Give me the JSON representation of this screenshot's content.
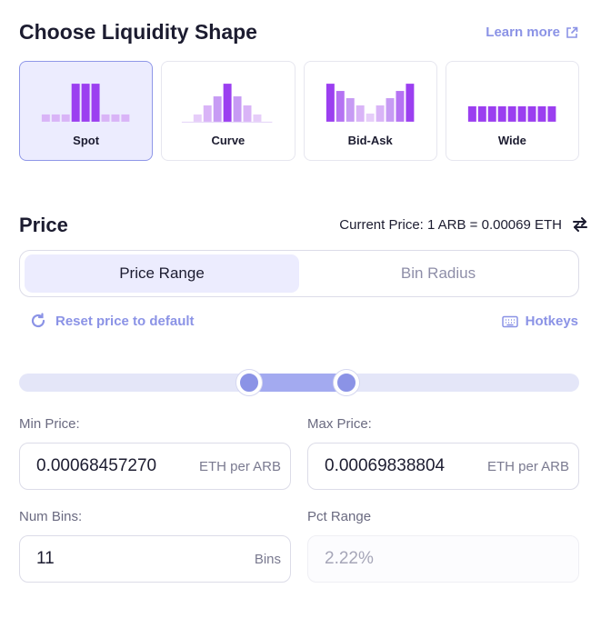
{
  "header": {
    "title": "Choose Liquidity Shape",
    "learn_more": "Learn more"
  },
  "shapes": [
    {
      "label": "Spot",
      "selected": true
    },
    {
      "label": "Curve",
      "selected": false
    },
    {
      "label": "Bid-Ask",
      "selected": false
    },
    {
      "label": "Wide",
      "selected": false
    }
  ],
  "price": {
    "title": "Price",
    "current_price": "Current Price: 1 ARB = 0.00069 ETH"
  },
  "tabs": {
    "price_range": "Price Range",
    "bin_radius": "Bin Radius",
    "active": "Price Range"
  },
  "actions": {
    "reset": "Reset price to default",
    "hotkeys": "Hotkeys"
  },
  "slider": {
    "low_fraction": 0.41,
    "high_fraction": 0.585
  },
  "fields": {
    "min_price": {
      "label": "Min Price:",
      "value": "0.00068457270",
      "unit": "ETH per ARB"
    },
    "max_price": {
      "label": "Max Price:",
      "value": "0.00069838804",
      "unit": "ETH per ARB"
    },
    "num_bins": {
      "label": "Num Bins:",
      "value": "11",
      "unit": "Bins"
    },
    "pct_range": {
      "label": "Pct Range",
      "value": "2.22%"
    }
  },
  "colors": {
    "accent": "#8b93e6",
    "bar_dark": "#9b3ff0",
    "bar_light": "#d9b4f7",
    "selected_bg": "#ececfe"
  }
}
